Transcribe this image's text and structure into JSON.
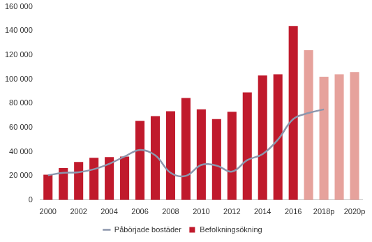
{
  "chart_data": {
    "type": "bar",
    "categories": [
      "2000",
      null,
      "2002",
      null,
      "2004",
      null,
      "2006",
      null,
      "2008",
      null,
      "2010",
      null,
      "2012",
      null,
      "2014",
      null,
      "2016",
      null,
      "2018p",
      null,
      "2020p"
    ],
    "ylim": [
      0,
      160000
    ],
    "yticks": [
      0,
      {
        "value": 20000,
        "label": "20 000"
      },
      {
        "value": 40000,
        "label": "40 000"
      },
      {
        "value": 60000,
        "label": "60 000"
      },
      {
        "value": 80000,
        "label": "80 000"
      },
      {
        "value": 100000,
        "label": "100 000"
      },
      {
        "value": 120000,
        "label": "120 000"
      },
      {
        "value": 140000,
        "label": "140 000"
      },
      {
        "value": 160000,
        "label": "160 000"
      }
    ],
    "grid": false,
    "legend": "bottom",
    "series": [
      {
        "name": "Befolkningsökning",
        "type": "bar",
        "colors": [
          "#c01a2c",
          "#c01a2c",
          "#c01a2c",
          "#c01a2c",
          "#c01a2c",
          "#c01a2c",
          "#c01a2c",
          "#c01a2c",
          "#c01a2c",
          "#c01a2c",
          "#c01a2c",
          "#c01a2c",
          "#c01a2c",
          "#c01a2c",
          "#c01a2c",
          "#c01a2c",
          "#c01a2c",
          "#e6a29c",
          "#e6a29c",
          "#e6a29c",
          "#e6a29c"
        ],
        "values": [
          21000,
          26500,
          31500,
          35000,
          35500,
          36000,
          65500,
          69500,
          73500,
          84500,
          75000,
          67000,
          73000,
          89000,
          103000,
          104000,
          144000,
          124000,
          102000,
          104000,
          106000
        ]
      },
      {
        "name": "Påbörjade bostäder",
        "type": "line",
        "color": "#8c96ad",
        "marker": "none",
        "line_style": "solid",
        "values": [
          20500,
          22500,
          23000,
          25500,
          30000,
          36000,
          41500,
          37000,
          22500,
          20000,
          29000,
          28500,
          23500,
          33000,
          38000,
          50000,
          67000,
          72000,
          75000,
          null,
          null
        ]
      }
    ]
  }
}
